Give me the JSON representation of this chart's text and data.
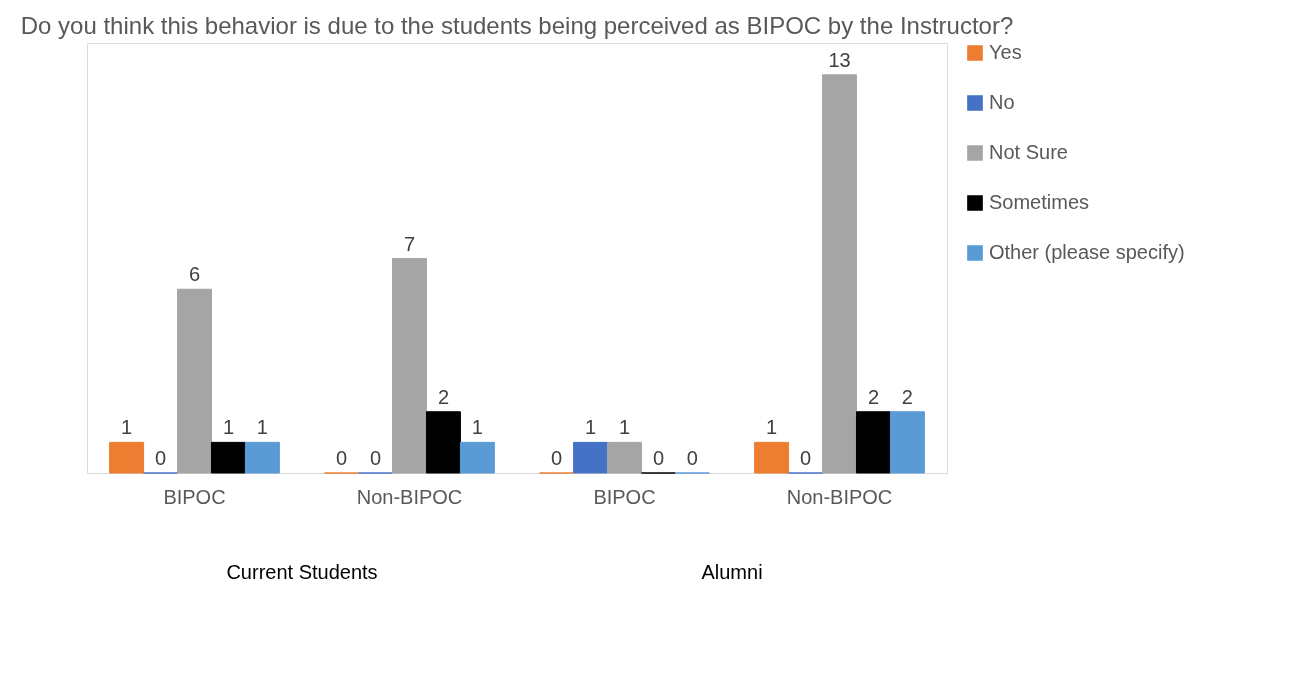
{
  "chart_data": {
    "type": "bar",
    "title": "Do you think this behavior is due to the students being perceived as BIPOC by the Instructor?",
    "categories": [
      "BIPOC",
      "Non-BIPOC",
      "BIPOC",
      "Non-BIPOC"
    ],
    "series": [
      {
        "name": "Yes",
        "color": "#ed7d31",
        "values": [
          1,
          0,
          0,
          1
        ]
      },
      {
        "name": "No",
        "color": "#4472c4",
        "values": [
          0,
          0,
          1,
          0
        ]
      },
      {
        "name": "Not Sure",
        "color": "#a5a5a5",
        "values": [
          6,
          7,
          1,
          13
        ]
      },
      {
        "name": "Sometimes",
        "color": "#000000",
        "values": [
          1,
          2,
          0,
          2
        ]
      },
      {
        "name": "Other (please specify)",
        "color": "#5b9bd5",
        "values": [
          1,
          1,
          0,
          2
        ]
      }
    ],
    "data_labels": true,
    "grid": false,
    "legend": "top right",
    "annotations": [
      "Current Students",
      "Alumni"
    ]
  }
}
